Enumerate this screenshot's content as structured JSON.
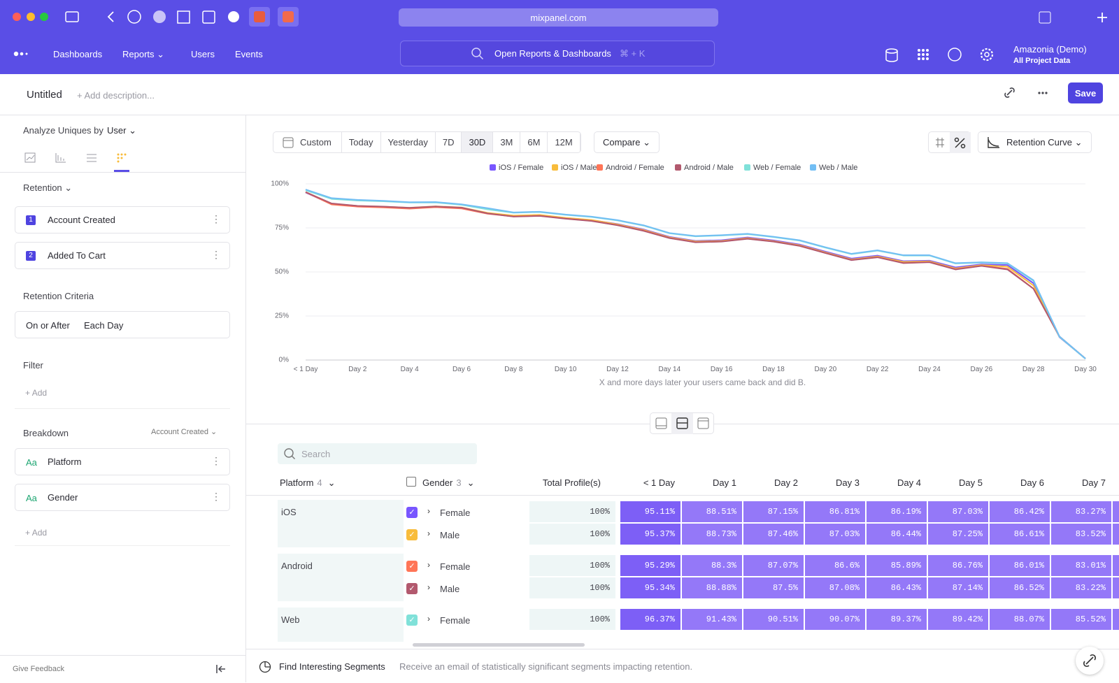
{
  "browser": {
    "url": "mixpanel.com"
  },
  "nav": {
    "items": [
      "Dashboards",
      "Reports",
      "Users",
      "Events"
    ],
    "search": "Open Reports & Dashboards",
    "shortcut": "⌘ + K",
    "project": "Amazonia (Demo)",
    "project_scope": "All Project Data"
  },
  "header": {
    "title": "Untitled",
    "description": "+ Add description...",
    "save": "Save"
  },
  "sidebar": {
    "analyze_label": "Analyze Uniques by",
    "analyze_value": "User",
    "retention_label": "Retention",
    "steps": [
      {
        "number": 1,
        "name": "Account Created"
      },
      {
        "number": 2,
        "name": "Added To Cart"
      }
    ],
    "criteria_label": "Retention Criteria",
    "criteria": [
      "On or After",
      "Each Day"
    ],
    "filter_label": "Filter",
    "filter_add": "Add",
    "breakdown_label": "Breakdown",
    "breakdown_event": "Account Created",
    "breakdowns": [
      {
        "icon": "Aa",
        "name": "Platform"
      },
      {
        "icon": "Aa",
        "name": "Gender"
      }
    ],
    "breakdown_add": "Add",
    "feedback": "Give Feedback"
  },
  "toolbar": {
    "custom": "Custom",
    "ranges": [
      "Today",
      "Yesterday",
      "7D",
      "30D",
      "3M",
      "6M",
      "12M"
    ],
    "selected_range": "30D",
    "compare": "Compare",
    "chart_type": "Retention Curve"
  },
  "chart_data": {
    "type": "line",
    "categories": [
      "< 1 Day",
      null,
      "Day 2",
      null,
      "Day 4",
      null,
      "Day 6",
      null,
      "Day 8",
      null,
      "Day 10",
      null,
      "Day 12",
      null,
      "Day 14",
      null,
      "Day 16",
      null,
      "Day 18",
      null,
      "Day 20",
      null,
      "Day 22",
      null,
      "Day 24",
      null,
      "Day 26",
      null,
      "Day 28",
      null,
      "Day 30"
    ],
    "series": [
      {
        "name": "iOS / Female",
        "color": "#7856ff",
        "values": [
          95.11,
          88.51,
          87.15,
          86.81,
          86.19,
          87.03,
          86.42,
          83.27,
          81.9,
          82.3,
          80.6,
          79.4,
          77.2,
          74.1,
          69.9,
          67.6,
          68.0,
          69.6,
          67.9,
          65.6,
          61.5,
          57.6,
          59.3,
          56.1,
          56.4,
          52.6,
          54.3,
          53.9,
          43.6,
          13.0,
          0.8
        ]
      },
      {
        "name": "iOS / Male",
        "color": "#f8bc3b",
        "values": [
          95.37,
          88.73,
          87.46,
          87.03,
          86.44,
          87.25,
          86.61,
          83.52,
          82.0,
          82.4,
          80.7,
          79.5,
          77.0,
          73.8,
          69.6,
          67.3,
          67.6,
          69.2,
          67.5,
          65.2,
          61.1,
          57.1,
          58.8,
          55.7,
          56.0,
          52.0,
          53.9,
          53.0,
          42.3,
          13.2,
          0.8
        ]
      },
      {
        "name": "Android / Female",
        "color": "#ff7557",
        "values": [
          95.29,
          88.3,
          87.07,
          86.6,
          85.89,
          86.76,
          86.01,
          83.01,
          81.5,
          81.9,
          80.3,
          79.0,
          76.6,
          73.5,
          69.3,
          66.9,
          67.3,
          68.9,
          67.3,
          64.9,
          60.8,
          56.8,
          58.4,
          55.1,
          55.6,
          51.6,
          53.5,
          51.8,
          40.5,
          13.3,
          0.8
        ]
      },
      {
        "name": "Android / Male",
        "color": "#b2596e",
        "values": [
          95.34,
          88.88,
          87.5,
          87.08,
          86.43,
          87.14,
          86.52,
          83.22,
          81.4,
          81.8,
          80.2,
          78.9,
          76.5,
          73.3,
          69.2,
          66.8,
          67.2,
          68.8,
          67.2,
          64.8,
          60.7,
          56.7,
          58.3,
          55.0,
          55.5,
          51.4,
          53.4,
          51.4,
          40.5,
          13.4,
          0.8
        ]
      },
      {
        "name": "Web / Female",
        "color": "#80e1d9",
        "values": [
          96.37,
          91.43,
          90.51,
          90.07,
          89.37,
          89.42,
          88.07,
          85.52,
          83.6,
          84.0,
          82.4,
          81.2,
          79.2,
          76.3,
          71.9,
          70.2,
          70.7,
          71.5,
          69.8,
          67.8,
          63.8,
          60.1,
          62.1,
          59.3,
          59.3,
          54.8,
          55.3,
          54.8,
          44.9,
          13.2,
          0.7
        ]
      },
      {
        "name": "Web / Male",
        "color": "#72bef4",
        "values": [
          96.8,
          91.9,
          90.9,
          90.4,
          89.6,
          89.7,
          88.4,
          86.2,
          83.8,
          84.2,
          82.6,
          81.4,
          79.4,
          76.5,
          72.1,
          70.4,
          70.9,
          71.7,
          70.0,
          68.0,
          64.0,
          60.3,
          62.3,
          59.5,
          59.5,
          55.0,
          55.5,
          55.0,
          45.3,
          13.4,
          0.8
        ]
      }
    ],
    "ylim": [
      0,
      100
    ],
    "yticks": [
      {
        "value": 0,
        "label": "0%"
      },
      {
        "value": 25,
        "label": "25%"
      },
      {
        "value": 50,
        "label": "50%"
      },
      {
        "value": 75,
        "label": "75%"
      },
      {
        "value": 100,
        "label": "100%"
      }
    ],
    "grid": true,
    "legend": "top",
    "caption": "X and more days later your users came back and did B."
  },
  "table": {
    "search_placeholder": "Search",
    "columns": {
      "platform": "Platform",
      "platform_count": 4,
      "gender": "Gender",
      "gender_count": 3,
      "total": "Total Profile(s)",
      "days": [
        "< 1 Day",
        "Day 1",
        "Day 2",
        "Day 3",
        "Day 4",
        "Day 5",
        "Day 6",
        "Day 7"
      ]
    },
    "groups": [
      {
        "platform": "iOS",
        "rows": [
          {
            "gender": "Female",
            "total": "100%",
            "cells": [
              "95.11%",
              "88.51%",
              "87.15%",
              "86.81%",
              "86.19%",
              "87.03%",
              "86.42%",
              "83.27%"
            ]
          },
          {
            "gender": "Male",
            "total": "100%",
            "cells": [
              "95.37%",
              "88.73%",
              "87.46%",
              "87.03%",
              "86.44%",
              "87.25%",
              "86.61%",
              "83.52%"
            ]
          }
        ]
      },
      {
        "platform": "Android",
        "rows": [
          {
            "gender": "Female",
            "total": "100%",
            "cells": [
              "95.29%",
              "88.3%",
              "87.07%",
              "86.6%",
              "85.89%",
              "86.76%",
              "86.01%",
              "83.01%"
            ]
          },
          {
            "gender": "Male",
            "total": "100%",
            "cells": [
              "95.34%",
              "88.88%",
              "87.5%",
              "87.08%",
              "86.43%",
              "87.14%",
              "86.52%",
              "83.22%"
            ]
          }
        ]
      },
      {
        "platform": "Web",
        "rows": [
          {
            "gender": "Female",
            "total": "100%",
            "cells": [
              "96.37%",
              "91.43%",
              "90.51%",
              "90.07%",
              "89.37%",
              "89.42%",
              "88.07%",
              "85.52%"
            ]
          }
        ]
      }
    ]
  },
  "footer": {
    "title": "Find Interesting Segments",
    "text": "Receive an email of statistically significant segments impacting retention."
  }
}
